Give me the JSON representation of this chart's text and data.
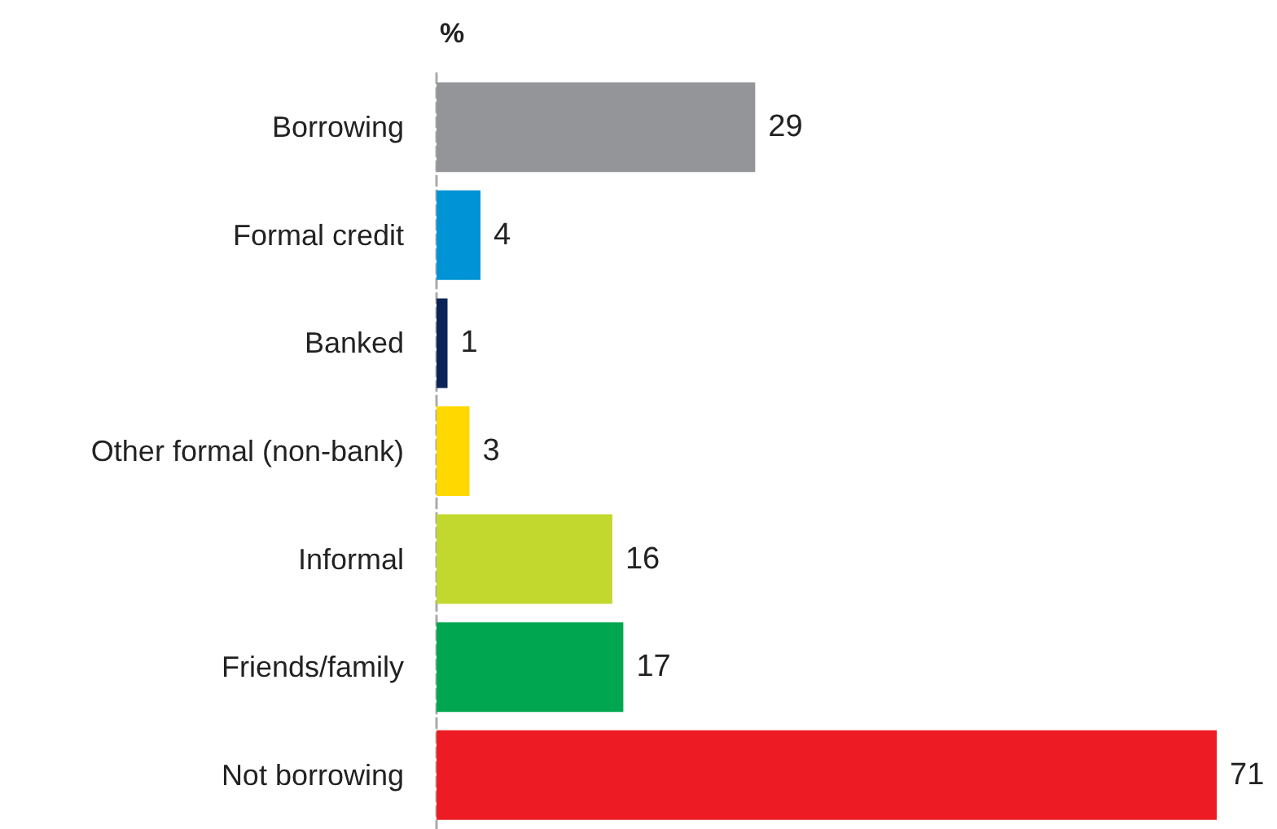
{
  "chart_data": {
    "type": "bar",
    "orientation": "horizontal",
    "xlabel": "%",
    "categories": [
      "Borrowing",
      "Formal credit",
      "Banked",
      "Other formal (non-bank)",
      "Informal",
      "Friends/family",
      "Not borrowing"
    ],
    "values": [
      29,
      4,
      1,
      3,
      16,
      17,
      71
    ],
    "colors": [
      "#939598",
      "#0093d5",
      "#0a2458",
      "#ffd800",
      "#c3d82e",
      "#00a650",
      "#ed1c24"
    ],
    "data_labels": true
  }
}
